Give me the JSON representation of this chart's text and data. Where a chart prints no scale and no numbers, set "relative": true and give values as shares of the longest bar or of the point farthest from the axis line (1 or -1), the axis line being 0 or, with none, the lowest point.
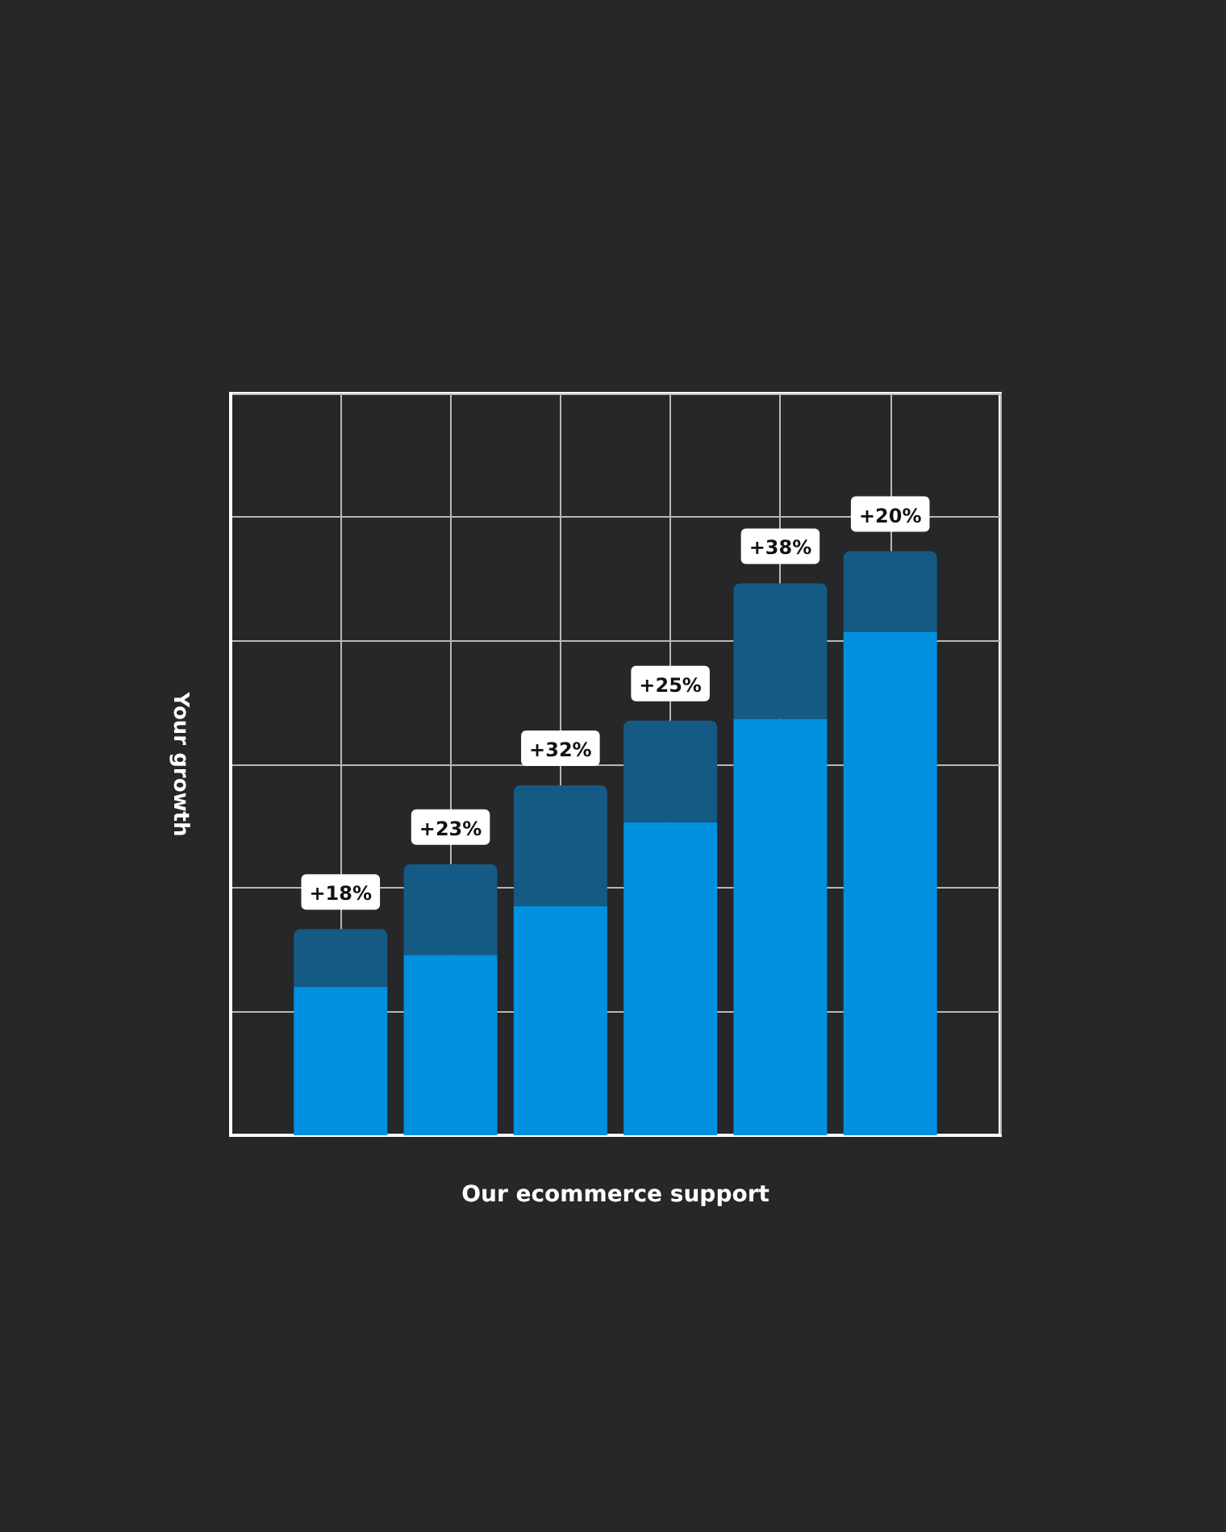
{
  "chart_data": {
    "type": "bar",
    "xlabel": "Our ecommerce support",
    "ylabel": "Your growth",
    "categories": [
      null,
      null,
      null,
      null,
      null,
      null
    ],
    "relative": true,
    "stacked": true,
    "grid": true,
    "annotations": [
      "+18%",
      "+23%",
      "+32%",
      "+25%",
      "+38%",
      "+20%"
    ],
    "series": [
      {
        "color": "#0091e0",
        "values": [
          0.254,
          0.309,
          0.392,
          0.536,
          0.713,
          0.862
        ]
      },
      {
        "color": "#155a85",
        "values": [
          0.099,
          0.155,
          0.207,
          0.174,
          0.232,
          0.138
        ]
      }
    ]
  }
}
